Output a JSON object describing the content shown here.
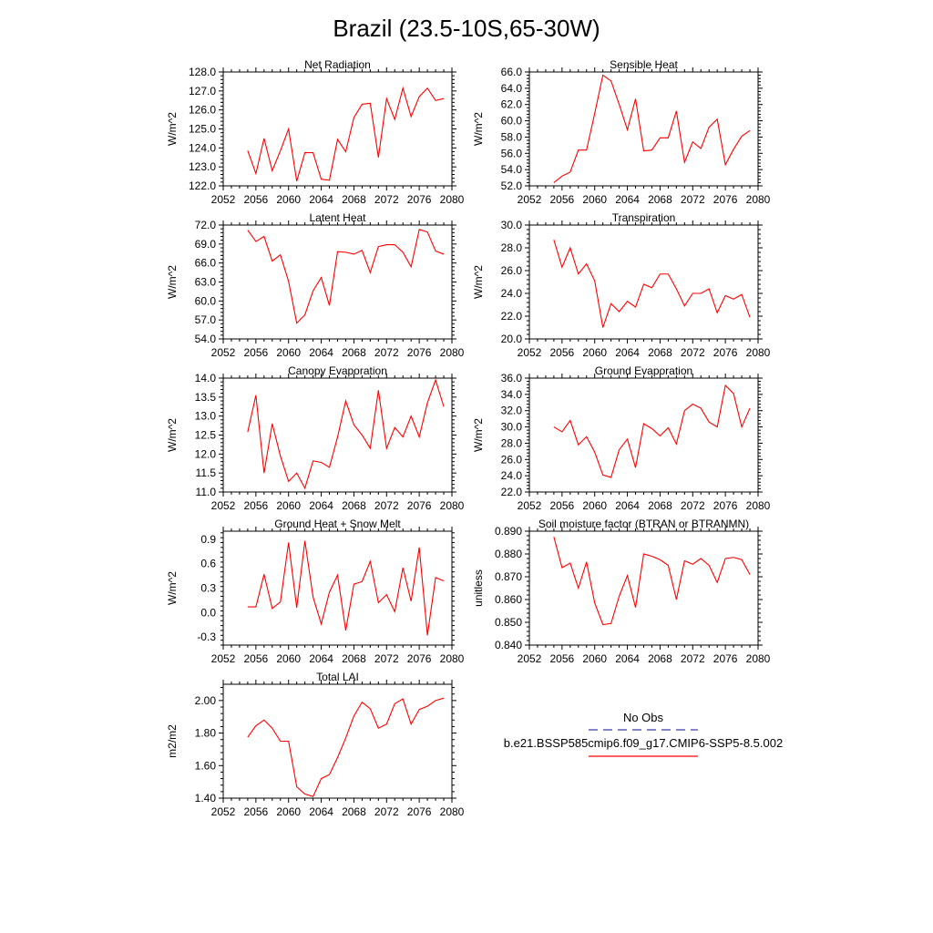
{
  "figure": {
    "title": "Brazil (23.5-10S,65-30W)"
  },
  "legend": {
    "entries": [
      {
        "label": "No Obs",
        "color": "#3a3aa8",
        "dash": true
      },
      {
        "label": "b.e21.BSSP585cmip6.f09_g17.CMIP6-SSP5-8.5.002",
        "color": "#ff0000",
        "dash": false
      }
    ]
  },
  "chart_data": [
    {
      "type": "line",
      "title": "Net Radiation",
      "ylabel": "W/m^2",
      "xlim": [
        2052,
        2080
      ],
      "x_ticks": [
        2052,
        2056,
        2060,
        2064,
        2068,
        2072,
        2076,
        2080
      ],
      "ylim": [
        122,
        128
      ],
      "y_ticks": [
        122,
        123,
        124,
        125,
        126,
        127,
        128
      ],
      "y_decimals": 1,
      "series": [
        {
          "color": "#ff0000",
          "x": [
            2055,
            2056,
            2057,
            2058,
            2059,
            2060,
            2061,
            2062,
            2063,
            2064,
            2065,
            2066,
            2067,
            2068,
            2069,
            2070,
            2071,
            2072,
            2073,
            2074,
            2075,
            2076,
            2077,
            2078,
            2079
          ],
          "values": [
            123.85,
            122.65,
            124.5,
            122.8,
            123.85,
            125.0,
            122.25,
            123.75,
            123.75,
            122.35,
            122.3,
            124.45,
            123.8,
            125.6,
            126.3,
            126.35,
            123.5,
            126.6,
            125.5,
            127.15,
            125.65,
            126.7,
            127.15,
            126.5,
            126.6
          ]
        }
      ]
    },
    {
      "type": "line",
      "title": "Sensible Heat",
      "ylabel": "W/m^2",
      "xlim": [
        2052,
        2080
      ],
      "x_ticks": [
        2052,
        2056,
        2060,
        2064,
        2068,
        2072,
        2076,
        2080
      ],
      "ylim": [
        52,
        66
      ],
      "y_ticks": [
        52,
        54,
        56,
        58,
        60,
        62,
        64,
        66
      ],
      "y_decimals": 1,
      "series": [
        {
          "color": "#ff0000",
          "x": [
            2055,
            2056,
            2057,
            2058,
            2059,
            2060,
            2061,
            2062,
            2063,
            2064,
            2065,
            2066,
            2067,
            2068,
            2069,
            2070,
            2071,
            2072,
            2073,
            2074,
            2075,
            2076,
            2077,
            2078,
            2079
          ],
          "values": [
            52.4,
            53.2,
            53.7,
            56.4,
            56.4,
            60.9,
            65.6,
            64.9,
            62.0,
            58.9,
            62.7,
            56.3,
            56.4,
            57.9,
            57.9,
            61.2,
            54.9,
            57.4,
            56.6,
            59.2,
            60.2,
            54.6,
            56.5,
            58.1,
            58.8
          ]
        }
      ]
    },
    {
      "type": "line",
      "title": "Latent Heat",
      "ylabel": "W/m^2",
      "xlim": [
        2052,
        2080
      ],
      "x_ticks": [
        2052,
        2056,
        2060,
        2064,
        2068,
        2072,
        2076,
        2080
      ],
      "ylim": [
        54,
        72
      ],
      "y_ticks": [
        54,
        57,
        60,
        63,
        66,
        69,
        72
      ],
      "y_decimals": 1,
      "series": [
        {
          "color": "#ff0000",
          "x": [
            2055,
            2056,
            2057,
            2058,
            2059,
            2060,
            2061,
            2062,
            2063,
            2064,
            2065,
            2066,
            2067,
            2068,
            2069,
            2070,
            2071,
            2072,
            2073,
            2074,
            2075,
            2076,
            2077,
            2078,
            2079
          ],
          "values": [
            71.2,
            69.4,
            70.2,
            66.3,
            67.3,
            63.1,
            56.5,
            57.8,
            61.6,
            63.7,
            59.3,
            67.8,
            67.7,
            67.4,
            68.0,
            64.5,
            68.6,
            68.9,
            68.9,
            67.7,
            65.4,
            71.3,
            70.9,
            67.9,
            67.4
          ]
        }
      ]
    },
    {
      "type": "line",
      "title": "Transpiration",
      "ylabel": "W/m^2",
      "xlim": [
        2052,
        2080
      ],
      "x_ticks": [
        2052,
        2056,
        2060,
        2064,
        2068,
        2072,
        2076,
        2080
      ],
      "ylim": [
        20,
        30
      ],
      "y_ticks": [
        20,
        22,
        24,
        26,
        28,
        30
      ],
      "y_decimals": 1,
      "series": [
        {
          "color": "#ff0000",
          "x": [
            2055,
            2056,
            2057,
            2058,
            2059,
            2060,
            2061,
            2062,
            2063,
            2064,
            2065,
            2066,
            2067,
            2068,
            2069,
            2070,
            2071,
            2072,
            2073,
            2074,
            2075,
            2076,
            2077,
            2078,
            2079
          ],
          "values": [
            28.7,
            26.3,
            28.0,
            25.7,
            26.6,
            25.1,
            21.0,
            23.1,
            22.4,
            23.3,
            22.8,
            24.8,
            24.5,
            25.7,
            25.7,
            24.4,
            22.9,
            24.0,
            24.0,
            24.4,
            22.3,
            23.8,
            23.5,
            23.9,
            21.9
          ]
        }
      ]
    },
    {
      "type": "line",
      "title": "Canopy Evaporation",
      "ylabel": "W/m^2",
      "xlim": [
        2052,
        2080
      ],
      "x_ticks": [
        2052,
        2056,
        2060,
        2064,
        2068,
        2072,
        2076,
        2080
      ],
      "ylim": [
        11,
        14
      ],
      "y_ticks": [
        11.0,
        11.5,
        12.0,
        12.5,
        13.0,
        13.5,
        14.0
      ],
      "y_decimals": 1,
      "series": [
        {
          "color": "#ff0000",
          "x": [
            2055,
            2056,
            2057,
            2058,
            2059,
            2060,
            2061,
            2062,
            2063,
            2064,
            2065,
            2066,
            2067,
            2068,
            2069,
            2070,
            2071,
            2072,
            2073,
            2074,
            2075,
            2076,
            2077,
            2078,
            2079
          ],
          "values": [
            12.58,
            13.55,
            11.5,
            12.8,
            11.95,
            11.28,
            11.5,
            11.1,
            11.82,
            11.78,
            11.65,
            12.45,
            13.4,
            12.77,
            12.5,
            12.15,
            13.68,
            12.15,
            12.7,
            12.45,
            13.0,
            12.45,
            13.35,
            13.95,
            13.25
          ]
        }
      ]
    },
    {
      "type": "line",
      "title": "Ground Evaporation",
      "ylabel": "W/m^2",
      "xlim": [
        2052,
        2080
      ],
      "x_ticks": [
        2052,
        2056,
        2060,
        2064,
        2068,
        2072,
        2076,
        2080
      ],
      "ylim": [
        22,
        36
      ],
      "y_ticks": [
        22,
        24,
        26,
        28,
        30,
        32,
        34,
        36
      ],
      "y_decimals": 1,
      "series": [
        {
          "color": "#ff0000",
          "x": [
            2055,
            2056,
            2057,
            2058,
            2059,
            2060,
            2061,
            2062,
            2063,
            2064,
            2065,
            2066,
            2067,
            2068,
            2069,
            2070,
            2071,
            2072,
            2073,
            2074,
            2075,
            2076,
            2077,
            2078,
            2079
          ],
          "values": [
            30.0,
            29.4,
            30.8,
            27.8,
            28.8,
            26.9,
            24.1,
            23.8,
            27.2,
            28.5,
            25.0,
            30.4,
            29.8,
            28.9,
            29.9,
            27.9,
            32.0,
            32.8,
            32.3,
            30.6,
            30.0,
            35.1,
            34.1,
            30.0,
            32.3
          ]
        }
      ]
    },
    {
      "type": "line",
      "title": "Ground Heat + Snow Melt",
      "ylabel": "W/m^2",
      "xlim": [
        2052,
        2080
      ],
      "x_ticks": [
        2052,
        2056,
        2060,
        2064,
        2068,
        2072,
        2076,
        2080
      ],
      "ylim": [
        -0.4,
        1.0
      ],
      "y_ticks": [
        -0.3,
        0.0,
        0.3,
        0.6,
        0.9
      ],
      "y_decimals": 1,
      "series": [
        {
          "color": "#ff0000",
          "x": [
            2055,
            2056,
            2057,
            2058,
            2059,
            2060,
            2061,
            2062,
            2063,
            2064,
            2065,
            2066,
            2067,
            2068,
            2069,
            2070,
            2071,
            2072,
            2073,
            2074,
            2075,
            2076,
            2077,
            2078,
            2079
          ],
          "values": [
            0.07,
            0.07,
            0.47,
            0.05,
            0.13,
            0.86,
            0.06,
            0.88,
            0.19,
            -0.14,
            0.25,
            0.46,
            -0.22,
            0.35,
            0.38,
            0.63,
            0.12,
            0.22,
            0.01,
            0.55,
            0.14,
            0.8,
            -0.28,
            0.43,
            0.39
          ]
        }
      ]
    },
    {
      "type": "line",
      "title": "Soil moisture factor (BTRAN or BTRANMN)",
      "ylabel": "unitless",
      "xlim": [
        2052,
        2080
      ],
      "x_ticks": [
        2052,
        2056,
        2060,
        2064,
        2068,
        2072,
        2076,
        2080
      ],
      "ylim": [
        0.84,
        0.89
      ],
      "y_ticks": [
        0.84,
        0.85,
        0.86,
        0.87,
        0.88,
        0.89
      ],
      "y_decimals": 3,
      "series": [
        {
          "color": "#ff0000",
          "x": [
            2055,
            2056,
            2057,
            2058,
            2059,
            2060,
            2061,
            2062,
            2063,
            2064,
            2065,
            2066,
            2067,
            2068,
            2069,
            2070,
            2071,
            2072,
            2073,
            2074,
            2075,
            2076,
            2077,
            2078,
            2079
          ],
          "values": [
            0.8875,
            0.874,
            0.876,
            0.865,
            0.8765,
            0.8585,
            0.849,
            0.8495,
            0.8615,
            0.8705,
            0.8565,
            0.88,
            0.879,
            0.8775,
            0.875,
            0.86,
            0.877,
            0.8755,
            0.878,
            0.875,
            0.8675,
            0.878,
            0.8785,
            0.8775,
            0.871
          ]
        }
      ]
    },
    {
      "type": "line",
      "title": "Total LAI",
      "ylabel": "m2/m2",
      "xlim": [
        2052,
        2080
      ],
      "x_ticks": [
        2052,
        2056,
        2060,
        2064,
        2068,
        2072,
        2076,
        2080
      ],
      "ylim": [
        1.4,
        2.1
      ],
      "y_ticks": [
        1.4,
        1.6,
        1.8,
        2.0
      ],
      "y_decimals": 2,
      "series": [
        {
          "color": "#ff0000",
          "x": [
            2055,
            2056,
            2057,
            2058,
            2059,
            2060,
            2061,
            2062,
            2063,
            2064,
            2065,
            2066,
            2067,
            2068,
            2069,
            2070,
            2071,
            2072,
            2073,
            2074,
            2075,
            2076,
            2077,
            2078,
            2079
          ],
          "values": [
            1.775,
            1.845,
            1.88,
            1.83,
            1.75,
            1.75,
            1.47,
            1.425,
            1.41,
            1.52,
            1.545,
            1.65,
            1.77,
            1.905,
            1.99,
            1.95,
            1.83,
            1.855,
            1.98,
            2.01,
            1.855,
            1.945,
            1.965,
            2.0,
            2.015
          ]
        }
      ]
    }
  ]
}
